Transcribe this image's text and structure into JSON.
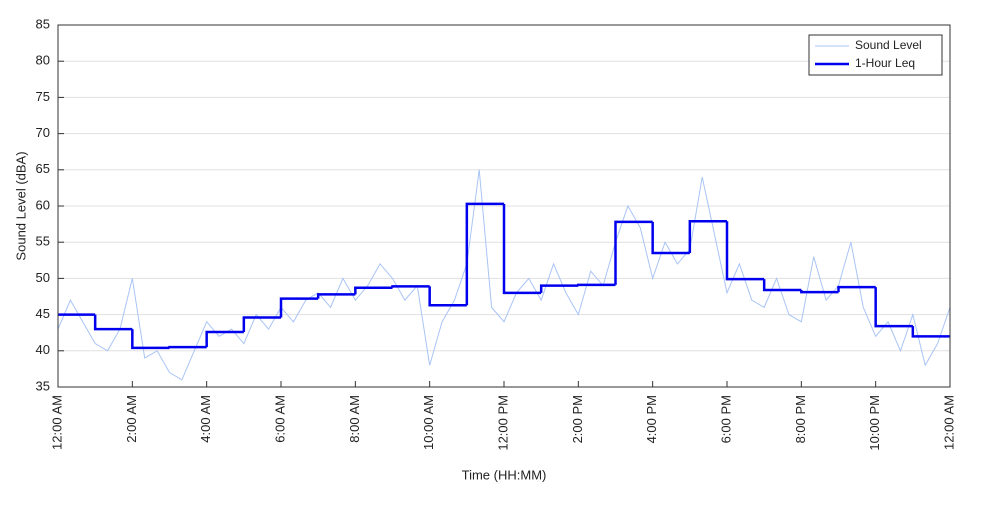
{
  "chart_data": {
    "type": "line",
    "xlabel": "Time (HH:MM)",
    "ylabel": "Sound Level (dBA)",
    "xlim": [
      0,
      1440
    ],
    "ylim": [
      35,
      85
    ],
    "xticks": [
      {
        "value": 0,
        "label": "12:00 AM"
      },
      {
        "value": 120,
        "label": "2:00 AM"
      },
      {
        "value": 240,
        "label": "4:00 AM"
      },
      {
        "value": 360,
        "label": "6:00 AM"
      },
      {
        "value": 480,
        "label": "8:00 AM"
      },
      {
        "value": 600,
        "label": "10:00 AM"
      },
      {
        "value": 720,
        "label": "12:00 PM"
      },
      {
        "value": 840,
        "label": "2:00 PM"
      },
      {
        "value": 960,
        "label": "4:00 PM"
      },
      {
        "value": 1080,
        "label": "6:00 PM"
      },
      {
        "value": 1200,
        "label": "8:00 PM"
      },
      {
        "value": 1320,
        "label": "10:00 PM"
      },
      {
        "value": 1440,
        "label": "12:00 AM"
      }
    ],
    "yticks": [
      35,
      40,
      45,
      50,
      55,
      60,
      65,
      70,
      75,
      80,
      85
    ],
    "grid": true,
    "legend": "upper right",
    "series": [
      {
        "name": "Sound Level",
        "color": "#a9c4f5",
        "style": "line",
        "x": [
          0,
          20,
          40,
          60,
          80,
          100,
          120,
          140,
          160,
          180,
          200,
          220,
          240,
          260,
          280,
          300,
          320,
          340,
          360,
          380,
          400,
          420,
          440,
          460,
          480,
          500,
          520,
          540,
          560,
          580,
          600,
          620,
          640,
          660,
          680,
          700,
          720,
          740,
          760,
          780,
          800,
          820,
          840,
          860,
          880,
          900,
          920,
          940,
          960,
          980,
          1000,
          1020,
          1040,
          1060,
          1080,
          1100,
          1120,
          1140,
          1160,
          1180,
          1200,
          1220,
          1240,
          1260,
          1280,
          1300,
          1320,
          1340,
          1360,
          1380,
          1400,
          1420,
          1440
        ],
        "values": [
          43,
          47,
          44,
          41,
          40,
          43,
          50,
          39,
          40,
          37,
          36,
          40,
          44,
          42,
          43,
          41,
          45,
          43,
          46,
          44,
          47,
          48,
          46,
          50,
          47,
          49,
          52,
          50,
          47,
          49,
          38,
          44,
          47,
          52,
          65,
          46,
          44,
          48,
          50,
          47,
          52,
          48,
          45,
          51,
          49,
          55,
          60,
          57,
          50,
          55,
          52,
          54,
          64,
          56,
          48,
          52,
          47,
          46,
          50,
          45,
          44,
          53,
          47,
          49,
          55,
          46,
          42,
          44,
          40,
          45,
          38,
          41,
          46
        ]
      },
      {
        "name": "1-Hour Leq",
        "color": "#0000ee",
        "style": "step",
        "x": [
          0,
          60,
          120,
          180,
          240,
          300,
          360,
          420,
          480,
          540,
          600,
          660,
          720,
          780,
          840,
          900,
          960,
          1020,
          1080,
          1140,
          1200,
          1260,
          1320,
          1380
        ],
        "values": [
          45,
          43,
          40.4,
          40.5,
          42.6,
          44.6,
          47.2,
          47.8,
          48.7,
          48.9,
          46.3,
          60.3,
          48,
          49,
          49.1,
          57.8,
          53.5,
          57.9,
          49.9,
          48.4,
          48.1,
          48.8,
          43.4,
          42
        ]
      }
    ]
  }
}
